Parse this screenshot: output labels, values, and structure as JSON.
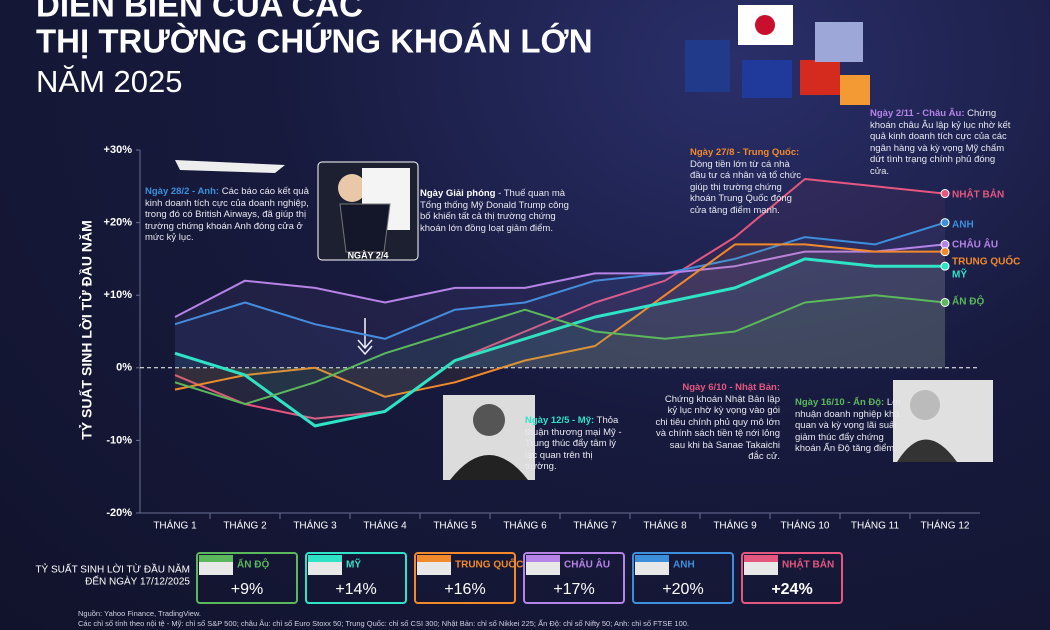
{
  "chart_data": {
    "type": "line",
    "title": [
      "DIỄN BIẾN CỦA CÁC",
      "THỊ TRƯỜNG CHỨNG KHOÁN LỚN"
    ],
    "subtitle": "NĂM 2025",
    "y_axis_label": "TỶ SUẤT SINH LỜI TỪ ĐẦU NĂM",
    "categories": [
      "THÁNG 1",
      "THÁNG 2",
      "THÁNG 3",
      "THÁNG 4",
      "THÁNG 5",
      "THÁNG 6",
      "THÁNG 7",
      "THÁNG 8",
      "THÁNG 9",
      "THÁNG 10",
      "THÁNG 11",
      "THÁNG 12"
    ],
    "ylim": [
      -20,
      30
    ],
    "yticks": [
      {
        "value": 30,
        "label": "+30%"
      },
      {
        "value": 20,
        "label": "+20%"
      },
      {
        "value": 10,
        "label": "+10%"
      },
      {
        "value": 0,
        "label": "0%"
      },
      {
        "value": -10,
        "label": "-10%"
      },
      {
        "value": -20,
        "label": "-20%"
      }
    ],
    "series": [
      {
        "name": "NHẬT BẢN",
        "color": "#e5577f",
        "values": [
          -1,
          -5,
          -7,
          -6,
          1,
          5,
          9,
          12,
          18,
          26,
          25,
          24
        ]
      },
      {
        "name": "ANH",
        "color": "#3d8fdc",
        "values": [
          6,
          9,
          6,
          4,
          8,
          9,
          12,
          13,
          15,
          18,
          17,
          20
        ]
      },
      {
        "name": "CHÂU ÂU",
        "color": "#b683e6",
        "values": [
          7,
          12,
          11,
          9,
          11,
          11,
          13,
          13,
          14,
          16,
          16,
          17
        ]
      },
      {
        "name": "TRUNG QUỐC",
        "color": "#f28a2c",
        "values": [
          -3,
          -1,
          0,
          -4,
          -2,
          1,
          3,
          10,
          17,
          17,
          16,
          16
        ]
      },
      {
        "name": "MỸ",
        "color": "#2fe3c7",
        "values": [
          2,
          -1,
          -8,
          -6,
          1,
          4,
          7,
          9,
          11,
          15,
          14,
          14
        ]
      },
      {
        "name": "ẤN ĐỘ",
        "color": "#5cb85c",
        "values": [
          -2,
          -5,
          -2,
          2,
          5,
          8,
          5,
          4,
          5,
          9,
          10,
          9
        ]
      }
    ],
    "annotations": [
      {
        "date": "Ngày 28/2 - Anh:",
        "text": "Các báo cáo kết quả kinh doanh tích cực của doanh nghiệp, trong đó có British Airways, đã giúp thị trường chứng khoán Anh đóng cửa ở mức kỷ lục."
      },
      {
        "date": "Ngày Giải phóng",
        "text": "- Thuế quan mà Tổng thống Mỹ Donald Trump công bố khiến tất cả thị trường chứng khoán lớn đồng loạt giảm điểm."
      },
      {
        "date": "Ngày 27/8 - Trung Quốc:",
        "text": "Dòng tiền lớn từ cá nhà đầu tư cá nhân và tổ chức giúp thị trường chứng khoán Trung Quốc đóng cửa tăng điểm mạnh."
      },
      {
        "date": "Ngày 2/11 - Châu Âu:",
        "text": "Chứng khoán châu Âu lập kỷ lục nhờ kết quả kinh doanh tích cực của các ngân hàng và kỳ vọng Mỹ chấm dứt tình trạng chính phủ đóng cửa."
      },
      {
        "date": "Ngày 12/5 - Mỹ:",
        "text": "Thỏa thuận thương mại Mỹ - Trung thúc đẩy tâm lý lạc quan trên thị trường."
      },
      {
        "date": "Ngày 6/10 - Nhật Bản:",
        "text": "Chứng khoán Nhật Bản lập kỷ lục nhờ kỳ vọng vào gói chi tiêu chính phủ quy mô lớn và chính sách tiền tệ nới lỏng sau khi bà Sanae Takaichi đắc cử."
      },
      {
        "date": "Ngày 16/10 - Ấn Độ:",
        "text": "Lợi nhuận doanh nghiệp khả quan và kỳ vọng lãi suất giảm thúc đẩy chứng khoán Ấn Độ tăng điểm."
      }
    ],
    "podium_label": "NGÀY 2/4",
    "summary": {
      "title": "TỶ SUẤT SINH LỜI TỪ ĐẦU NĂM",
      "subtitle": "ĐẾN NGÀY 17/12/2025",
      "names": [
        "ẤN ĐỘ",
        "MỸ",
        "TRUNG QUỐC",
        "CHÂU ÂU",
        "ANH",
        "NHẬT BẢN"
      ],
      "colors": [
        "#5cb85c",
        "#2fe3c7",
        "#f28a2c",
        "#b683e6",
        "#3d8fdc",
        "#e5577f"
      ],
      "values": [
        9,
        14,
        16,
        17,
        20,
        24
      ],
      "value_labels": [
        "+9%",
        "+14%",
        "+16%",
        "+17%",
        "+20%",
        "+24%"
      ]
    },
    "source": "Nguồn: Yahoo Finance, TradingView.",
    "note": "Các chỉ số tính theo nội tệ - Mỹ: chỉ số S&P 500; châu Âu: chỉ số Euro Stoxx 50; Trung Quốc: chỉ số CSI 300; Nhật Bản: chỉ số Nikkei 225; Ấn Độ: chỉ số Nifty 50; Anh: chỉ số FTSE 100."
  }
}
